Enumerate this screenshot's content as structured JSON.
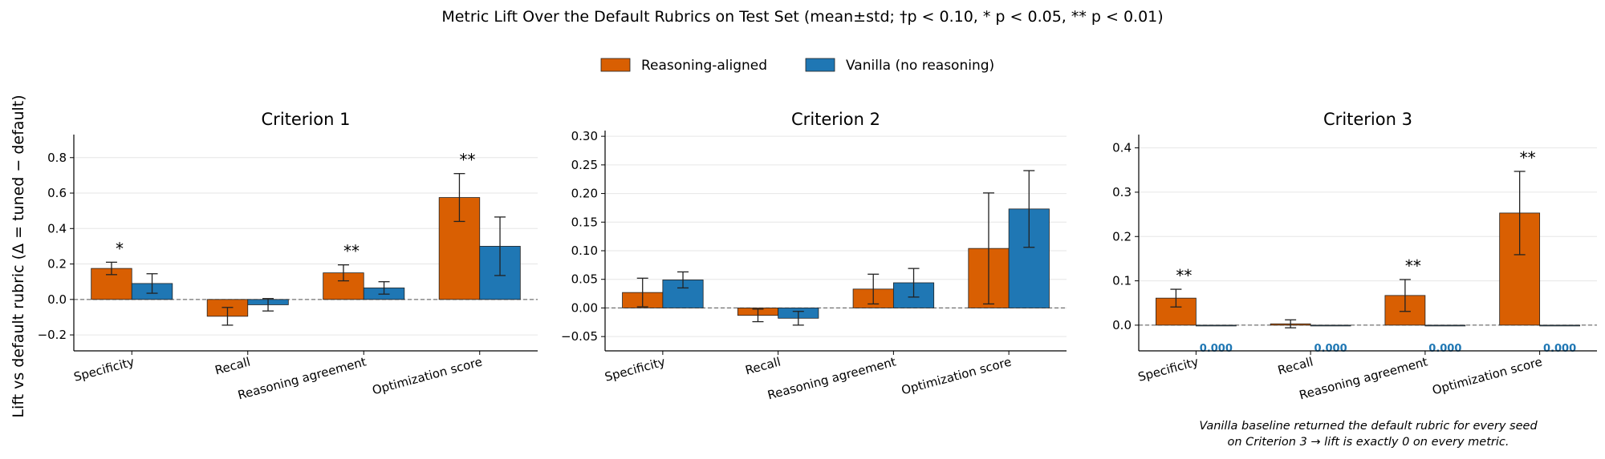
{
  "figure": {
    "title": "Metric Lift Over the Default Rubrics on Test Set (mean±std; †p < 0.10,  * p < 0.05,  ** p < 0.01)",
    "ylabel": "Lift vs default rubric (Δ = tuned − default)",
    "note_lines": [
      "Vanilla baseline returned the default rubric for every seed",
      "on Criterion 3 → lift is exactly 0 on every metric."
    ]
  },
  "legend": {
    "placement": "top-center",
    "items": [
      {
        "label": "Reasoning-aligned",
        "color": "#d95f02"
      },
      {
        "label": "Vanilla (no reasoning)",
        "color": "#1f77b4"
      }
    ]
  },
  "colors": {
    "reasoning": "#d95f02",
    "vanilla": "#1f77b4"
  },
  "chart_data": [
    {
      "type": "bar",
      "title": "Criterion 1",
      "categories": [
        "Specificity",
        "Recall",
        "Reasoning agreement",
        "Optimization score"
      ],
      "ylim": [
        -0.29,
        0.93
      ],
      "yticks": [
        -0.2,
        0.0,
        0.2,
        0.4,
        0.6,
        0.8
      ],
      "ytick_labels": [
        "−0.2",
        "0.0",
        "0.2",
        "0.4",
        "0.6",
        "0.8"
      ],
      "grid": "horizontal",
      "series": [
        {
          "name": "Reasoning-aligned",
          "values": [
            0.175,
            -0.095,
            0.15,
            0.575
          ],
          "errors": [
            0.035,
            0.05,
            0.045,
            0.135
          ]
        },
        {
          "name": "Vanilla (no reasoning)",
          "values": [
            0.09,
            -0.03,
            0.065,
            0.3
          ],
          "errors": [
            0.055,
            0.035,
            0.035,
            0.165
          ]
        }
      ],
      "annotations": [
        "*",
        "",
        "**",
        "**"
      ],
      "value_labels": []
    },
    {
      "type": "bar",
      "title": "Criterion 2",
      "categories": [
        "Specificity",
        "Recall",
        "Reasoning agreement",
        "Optimization score"
      ],
      "ylim": [
        -0.075,
        0.31
      ],
      "yticks": [
        -0.05,
        0.0,
        0.05,
        0.1,
        0.15,
        0.2,
        0.25,
        0.3
      ],
      "ytick_labels": [
        "−0.05",
        "0.00",
        "0.05",
        "0.10",
        "0.15",
        "0.20",
        "0.25",
        "0.30"
      ],
      "grid": "horizontal",
      "series": [
        {
          "name": "Reasoning-aligned",
          "values": [
            0.027,
            -0.013,
            0.033,
            0.104
          ],
          "errors": [
            0.025,
            0.011,
            0.026,
            0.097
          ]
        },
        {
          "name": "Vanilla (no reasoning)",
          "values": [
            0.049,
            -0.018,
            0.044,
            0.173
          ],
          "errors": [
            0.014,
            0.012,
            0.025,
            0.067
          ]
        }
      ],
      "annotations": [
        "",
        "",
        "",
        ""
      ],
      "value_labels": []
    },
    {
      "type": "bar",
      "title": "Criterion 3",
      "categories": [
        "Specificity",
        "Recall",
        "Reasoning agreement",
        "Optimization score"
      ],
      "ylim": [
        -0.058,
        0.43
      ],
      "yticks": [
        0.0,
        0.1,
        0.2,
        0.3,
        0.4
      ],
      "ytick_labels": [
        "0.0",
        "0.1",
        "0.2",
        "0.3",
        "0.4"
      ],
      "grid": "horizontal",
      "series": [
        {
          "name": "Reasoning-aligned",
          "values": [
            0.061,
            0.003,
            0.067,
            0.253
          ],
          "errors": [
            0.02,
            0.009,
            0.036,
            0.094
          ]
        },
        {
          "name": "Vanilla (no reasoning)",
          "values": [
            0,
            0,
            0,
            0
          ],
          "errors": [
            0,
            0,
            0,
            0
          ]
        }
      ],
      "annotations": [
        "**",
        "",
        "**",
        "**"
      ],
      "value_labels": [
        "0.000",
        "0.000",
        "0.000",
        "0.000"
      ]
    }
  ]
}
